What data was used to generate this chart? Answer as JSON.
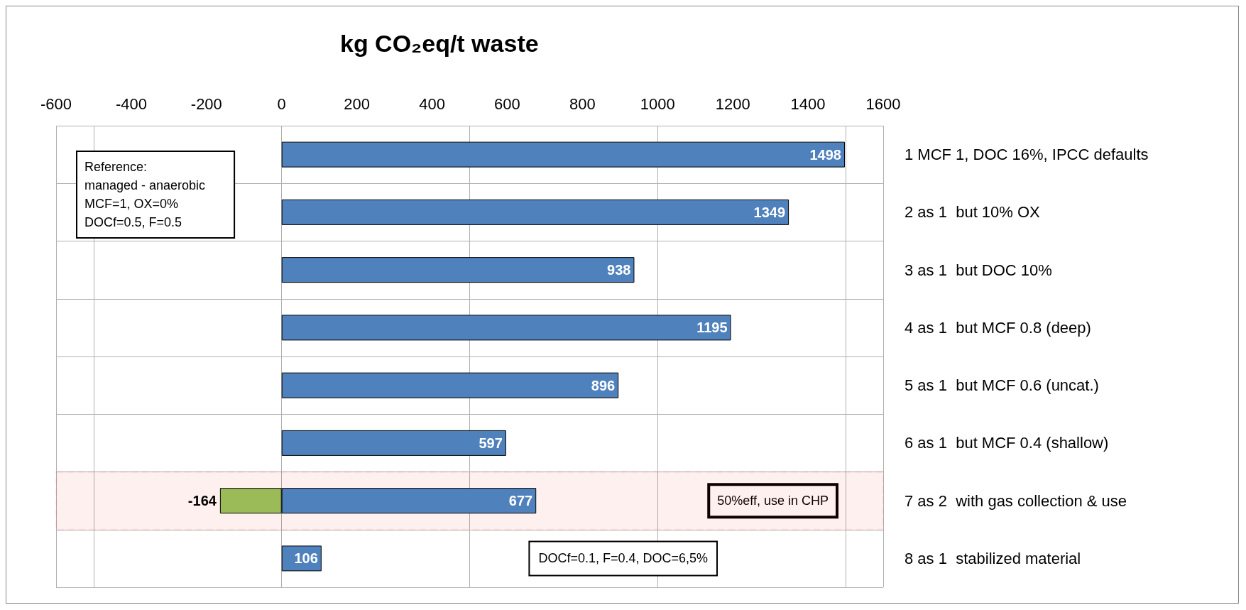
{
  "chart_data": {
    "type": "bar",
    "orientation": "horizontal",
    "stacked": true,
    "title": "kg CO₂eq/t waste",
    "categories": [
      "1 MCF 1, DOC 16%, IPCC defaults",
      "2 as 1  but 10% OX",
      "3 as 1  but DOC 10%",
      "4 as 1  but MCF 0.8 (deep)",
      "5 as 1  but MCF 0.6 (uncat.)",
      "6 as 1  but MCF 0.4 (shallow)",
      "7 as 2  with gas collection & use",
      "8 as 1  stabilized material"
    ],
    "series": [
      {
        "color": "#4f81bd",
        "values": [
          1498,
          1349,
          938,
          1195,
          896,
          597,
          677,
          106
        ]
      },
      {
        "color": "#9bbb59",
        "values": [
          null,
          null,
          null,
          null,
          null,
          null,
          -164,
          null
        ]
      }
    ],
    "xlim": [
      -600,
      1600
    ],
    "xticks": [
      -600,
      -400,
      -200,
      0,
      200,
      400,
      600,
      800,
      1000,
      1200,
      1400,
      1600
    ],
    "grid": true,
    "data_labels": true,
    "bands": [
      {
        "axis": "y",
        "from": "7 as 2  with gas collection & use",
        "to": "7 as 2  with gas collection & use",
        "color": "#ff0000"
      }
    ],
    "annotations": [
      "Reference:\nmanaged - anaerobic\nMCF=1, OX=0%\nDOCf=0.5, F=0.5",
      "50%eff, use in CHP",
      "DOCf=0.1, F=0.4, DOC=6,5%"
    ]
  }
}
